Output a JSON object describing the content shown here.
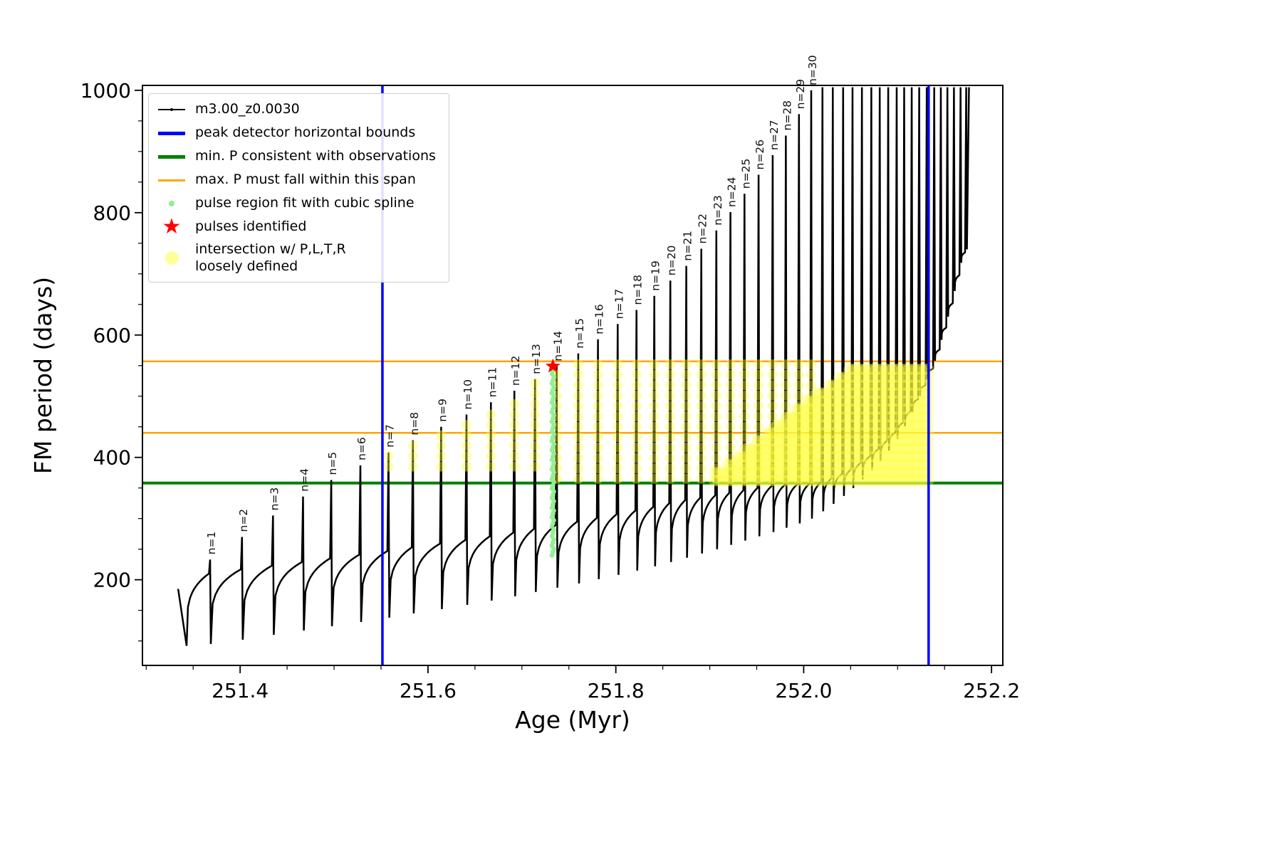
{
  "figure": {
    "xlabel": "Age (Myr)",
    "ylabel": "FM period (days)"
  },
  "legend": {
    "items": [
      {
        "label": "m3.00_z0.0030",
        "swatch": "line-dot"
      },
      {
        "label": "peak detector horizontal bounds",
        "swatch": "hline-blue"
      },
      {
        "label": "min. P consistent with observations",
        "swatch": "hline-green"
      },
      {
        "label": "max. P must fall within this span",
        "swatch": "hline-orange"
      },
      {
        "label": "pulse region fit with cubic spline",
        "swatch": "dot-green"
      },
      {
        "label": "pulses identified",
        "swatch": "star-red",
        "glyph": "★"
      },
      {
        "label": "intersection w/ P,L,T,R\nloosely defined",
        "swatch": "dot-yellow"
      }
    ]
  },
  "colors": {
    "series": "#000000",
    "peak_detector_bounds": "#0000ff",
    "min_P_line": "#008000",
    "max_P_span": "#ffa500",
    "spline_dots": "#90ee90",
    "pulse_star": "#ff0000",
    "intersection_dots": "#ffff42"
  },
  "chart_data": {
    "type": "line",
    "title": "",
    "xlabel": "Age (Myr)",
    "ylabel": "FM period (days)",
    "series_name": "m3.00_z0.0030",
    "xlim": [
      251.296,
      252.212
    ],
    "ylim": [
      60,
      1008
    ],
    "xticks": [
      251.4,
      251.6,
      251.8,
      252.0,
      252.2
    ],
    "xtick_labels": [
      "251.4",
      "251.6",
      "251.8",
      "252.0",
      "252.2"
    ],
    "yticks": [
      200,
      400,
      600,
      800,
      1000
    ],
    "legend_position": "upper left",
    "grid": false,
    "peak_detector_bounds_x": [
      251.5515,
      252.133
    ],
    "min_P_line_y": 358,
    "max_P_span_y": [
      440,
      557
    ],
    "spline_fit_column": {
      "age": 251.733,
      "period_min": 240,
      "period_max": 549
    },
    "pulse_identified": {
      "age": 251.733,
      "period": 549
    },
    "intersection_region": {
      "x_range": [
        251.553,
        252.135
      ],
      "y_range": [
        358,
        557
      ]
    },
    "start": {
      "age": 251.334,
      "period": 185,
      "first_dip": 92
    },
    "end_age": 252.176,
    "pulses": [
      {
        "n": 1,
        "age": 251.368,
        "peak": 233,
        "dip": 95,
        "plateau": 210
      },
      {
        "n": 2,
        "age": 251.402,
        "peak": 270,
        "dip": 102,
        "plateau": 217
      },
      {
        "n": 3,
        "age": 251.435,
        "peak": 305,
        "dip": 110,
        "plateau": 223
      },
      {
        "n": 4,
        "age": 251.467,
        "peak": 336,
        "dip": 117,
        "plateau": 229
      },
      {
        "n": 5,
        "age": 251.497,
        "peak": 363,
        "dip": 124,
        "plateau": 235
      },
      {
        "n": 6,
        "age": 251.528,
        "peak": 387,
        "dip": 131,
        "plateau": 241
      },
      {
        "n": 7,
        "age": 251.558,
        "peak": 408,
        "dip": 138,
        "plateau": 247
      },
      {
        "n": 8,
        "age": 251.584,
        "peak": 428,
        "dip": 145,
        "plateau": 253
      },
      {
        "n": 9,
        "age": 251.614,
        "peak": 450,
        "dip": 152,
        "plateau": 259
      },
      {
        "n": 10,
        "age": 251.641,
        "peak": 470,
        "dip": 159,
        "plateau": 265
      },
      {
        "n": 11,
        "age": 251.667,
        "peak": 490,
        "dip": 166,
        "plateau": 271
      },
      {
        "n": 12,
        "age": 251.692,
        "peak": 509,
        "dip": 173,
        "plateau": 277
      },
      {
        "n": 13,
        "age": 251.714,
        "peak": 528,
        "dip": 180,
        "plateau": 283
      },
      {
        "n": 14,
        "age": 251.737,
        "peak": 549,
        "dip": 187,
        "plateau": 289
      },
      {
        "n": 15,
        "age": 251.76,
        "peak": 570,
        "dip": 194,
        "plateau": 295
      },
      {
        "n": 16,
        "age": 251.781,
        "peak": 593,
        "dip": 201,
        "plateau": 301
      },
      {
        "n": 17,
        "age": 251.802,
        "peak": 618,
        "dip": 208,
        "plateau": 307
      },
      {
        "n": 18,
        "age": 251.822,
        "peak": 641,
        "dip": 215,
        "plateau": 313
      },
      {
        "n": 19,
        "age": 251.841,
        "peak": 664,
        "dip": 222,
        "plateau": 319
      },
      {
        "n": 20,
        "age": 251.858,
        "peak": 689,
        "dip": 229,
        "plateau": 325
      },
      {
        "n": 21,
        "age": 251.875,
        "peak": 713,
        "dip": 236,
        "plateau": 330
      },
      {
        "n": 22,
        "age": 251.891,
        "peak": 741,
        "dip": 243,
        "plateau": 334
      },
      {
        "n": 23,
        "age": 251.907,
        "peak": 771,
        "dip": 250,
        "plateau": 338
      },
      {
        "n": 24,
        "age": 251.922,
        "peak": 801,
        "dip": 257,
        "plateau": 342
      },
      {
        "n": 25,
        "age": 251.937,
        "peak": 831,
        "dip": 264,
        "plateau": 346
      },
      {
        "n": 26,
        "age": 251.952,
        "peak": 862,
        "dip": 271,
        "plateau": 350
      },
      {
        "n": 27,
        "age": 251.967,
        "peak": 894,
        "dip": 278,
        "plateau": 353
      },
      {
        "n": 28,
        "age": 251.981,
        "peak": 926,
        "dip": 285,
        "plateau": 355
      },
      {
        "n": 29,
        "age": 251.995,
        "peak": 961,
        "dip": 292,
        "plateau": 357
      },
      {
        "n": 30,
        "age": 252.008,
        "peak": 1000,
        "dip": 300,
        "plateau": 358
      }
    ],
    "post_pulses": [
      {
        "age": 252.02,
        "peak": 1005,
        "dip": 312,
        "plateau": 360
      },
      {
        "age": 252.031,
        "peak": 1005,
        "dip": 324,
        "plateau": 366
      },
      {
        "age": 252.042,
        "peak": 1005,
        "dip": 337,
        "plateau": 373
      },
      {
        "age": 252.052,
        "peak": 1005,
        "dip": 350,
        "plateau": 381
      },
      {
        "age": 252.062,
        "peak": 1005,
        "dip": 364,
        "plateau": 391
      },
      {
        "age": 252.072,
        "peak": 1005,
        "dip": 379,
        "plateau": 402
      },
      {
        "age": 252.081,
        "peak": 1005,
        "dip": 394,
        "plateau": 414
      },
      {
        "age": 252.09,
        "peak": 1005,
        "dip": 411,
        "plateau": 427
      },
      {
        "age": 252.099,
        "peak": 1005,
        "dip": 430,
        "plateau": 441
      },
      {
        "age": 252.107,
        "peak": 1005,
        "dip": 451,
        "plateau": 457
      },
      {
        "age": 252.115,
        "peak": 1005,
        "dip": 474,
        "plateau": 475
      },
      {
        "age": 252.123,
        "peak": 1005,
        "dip": 500,
        "plateau": 495
      },
      {
        "age": 252.131,
        "peak": 1005,
        "dip": 528,
        "plateau": 518
      },
      {
        "age": 252.139,
        "peak": 1005,
        "dip": 558,
        "plateau": 545
      },
      {
        "age": 252.146,
        "peak": 1005,
        "dip": 592,
        "plateau": 576
      },
      {
        "age": 252.153,
        "peak": 1005,
        "dip": 630,
        "plateau": 612
      },
      {
        "age": 252.16,
        "peak": 1005,
        "dip": 672,
        "plateau": 652
      },
      {
        "age": 252.167,
        "peak": 1005,
        "dip": 718,
        "plateau": 698
      },
      {
        "age": 252.173,
        "peak": 1005,
        "dip": 740,
        "plateau": 735
      }
    ]
  }
}
